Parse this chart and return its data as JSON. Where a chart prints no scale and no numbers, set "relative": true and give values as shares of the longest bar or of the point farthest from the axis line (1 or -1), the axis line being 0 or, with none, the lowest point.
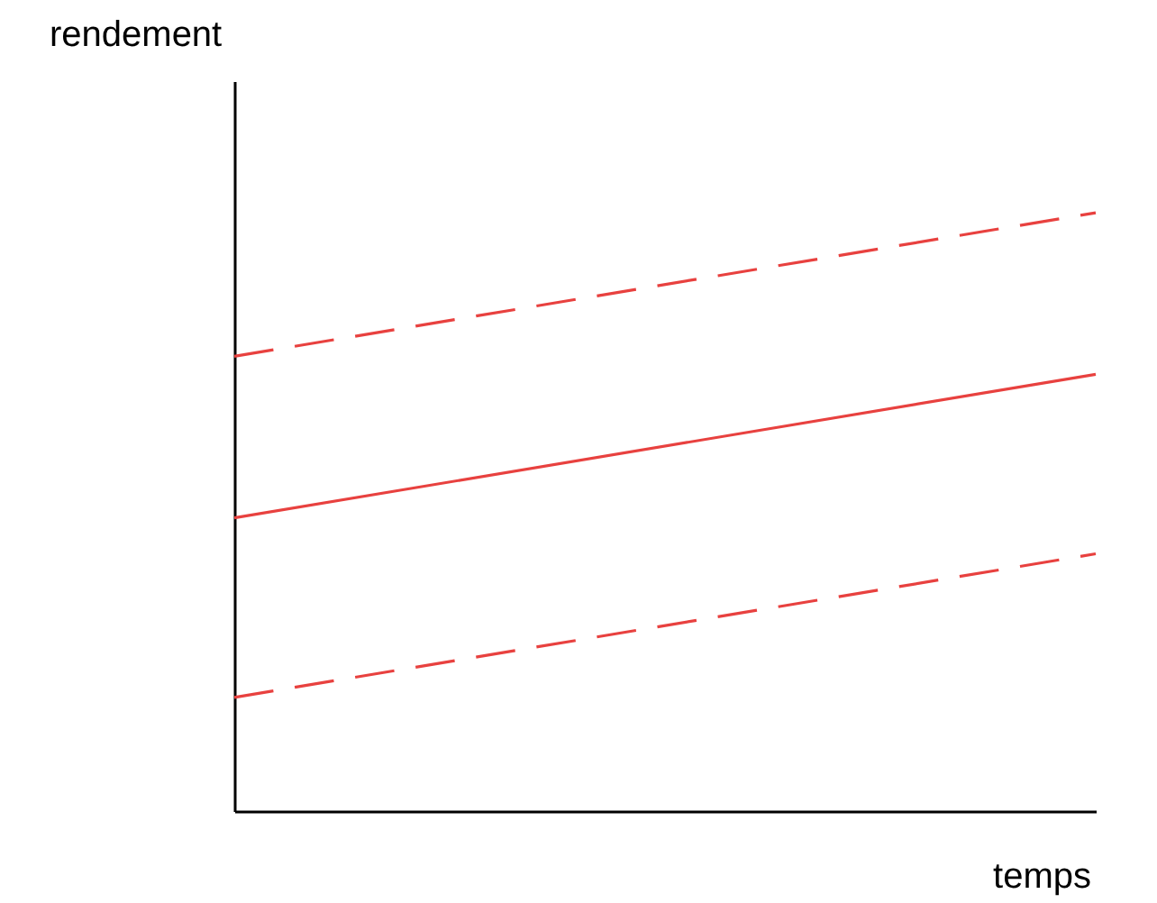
{
  "chart_data": {
    "type": "line",
    "xlabel": "temps",
    "ylabel": "rendement",
    "relative": true,
    "categories": [
      null,
      null
    ],
    "series": [
      {
        "color": "#e8413f",
        "line_style": "dashed",
        "values": [
          0.76,
          1
        ]
      },
      {
        "color": "#e8413f",
        "line_style": "solid",
        "values": [
          0.49,
          0.73
        ]
      },
      {
        "color": "#e8413f",
        "line_style": "dashed",
        "values": [
          0.19,
          0.43
        ]
      }
    ]
  }
}
